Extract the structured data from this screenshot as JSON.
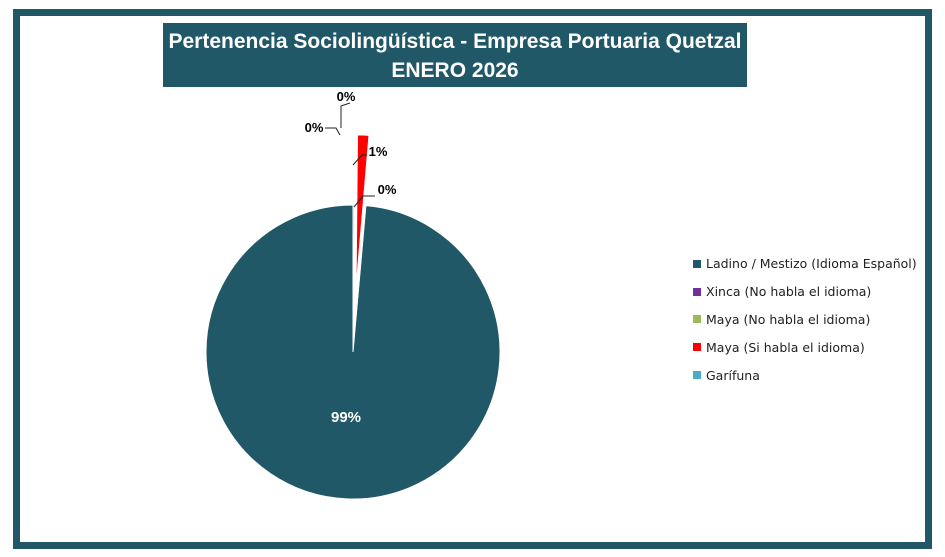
{
  "chart_data": {
    "type": "pie",
    "title": "Pertenencia Sociolingüística - Empresa Portuaria Quetzal",
    "subtitle": "ENERO 2026",
    "categories": [
      "Ladino / Mestizo (Idioma Español)",
      "Xinca (No habla el idioma)",
      "Maya  (No habla el idioma)",
      "Maya  (Si habla el idioma)",
      "Garífuna"
    ],
    "values": [
      98.6,
      0.05,
      0.1,
      1.2,
      0.05
    ],
    "data_labels": [
      "99%",
      "0%",
      "0%",
      "1%",
      "0%"
    ],
    "colors": [
      "#215867",
      "#7030a0",
      "#9bbb59",
      "#ff0000",
      "#4bacc6"
    ],
    "legend_position": "right",
    "grid": false
  }
}
